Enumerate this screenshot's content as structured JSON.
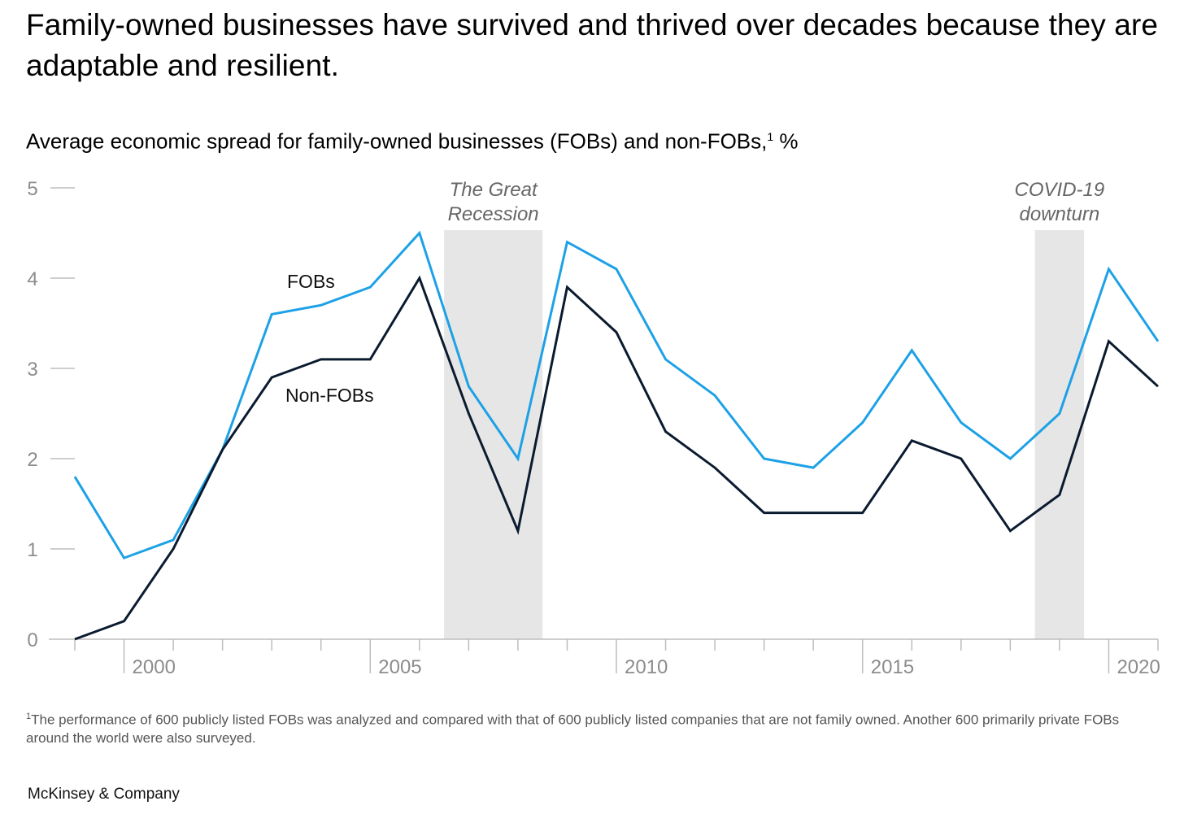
{
  "title": "Family-owned businesses have survived and thrived over decades because they are adaptable and resilient.",
  "subtitle": {
    "text": "Average economic spread for family-owned businesses (FOBs) and non-FOBs,",
    "footnote_ref": "1",
    "unit": " %"
  },
  "footnote": {
    "marker": "1",
    "text": "The performance of 600 publicly listed FOBs was analyzed and compared with that of 600 publicly listed companies that are not family owned. Another 600 primarily private FOBs around the world were also surveyed."
  },
  "brand": "McKinsey & Company",
  "chart_data": {
    "type": "line",
    "title": "Average economic spread for family-owned businesses (FOBs) and non-FOBs, %",
    "xlabel": "",
    "ylabel": "%",
    "x": [
      1999,
      2000,
      2001,
      2002,
      2003,
      2004,
      2005,
      2006,
      2007,
      2008,
      2009,
      2010,
      2011,
      2012,
      2013,
      2014,
      2015,
      2016,
      2017,
      2018,
      2019,
      2020,
      2021
    ],
    "xlim": [
      1999,
      2021
    ],
    "ylim": [
      0,
      5
    ],
    "y_ticks": [
      "0",
      "1",
      "2",
      "3",
      "4",
      "5"
    ],
    "x_tick_labels": [
      {
        "x": 2000,
        "label": "2000"
      },
      {
        "x": 2005,
        "label": "2005"
      },
      {
        "x": 2010,
        "label": "2010"
      },
      {
        "x": 2015,
        "label": "2015"
      },
      {
        "x": 2020,
        "label": "2020"
      }
    ],
    "series": [
      {
        "name": "FOBs",
        "label": "FOBs",
        "color": "#1da1e6",
        "values": [
          1.8,
          0.9,
          1.1,
          2.1,
          3.6,
          3.7,
          3.9,
          4.5,
          2.8,
          2.0,
          4.4,
          4.1,
          3.1,
          2.7,
          2.0,
          1.9,
          2.4,
          3.2,
          2.4,
          2.0,
          2.5,
          4.1,
          3.3
        ]
      },
      {
        "name": "Non-FOBs",
        "label": "Non-FOBs",
        "color": "#0b1b2f",
        "values": [
          0.0,
          0.2,
          1.0,
          2.1,
          2.9,
          3.1,
          3.1,
          4.0,
          2.5,
          1.2,
          3.9,
          3.4,
          2.3,
          1.9,
          1.4,
          1.4,
          1.4,
          2.2,
          2.0,
          1.2,
          1.6,
          3.3,
          2.8
        ]
      }
    ],
    "shaded_periods": [
      {
        "label_line1": "The Great",
        "label_line2": "Recession",
        "start": 2006.5,
        "end": 2008.5
      },
      {
        "label_line1": "COVID-19",
        "label_line2": "downturn",
        "start": 2018.5,
        "end": 2019.5
      }
    ],
    "shade_color": "#e6e6e6",
    "grid": false
  }
}
